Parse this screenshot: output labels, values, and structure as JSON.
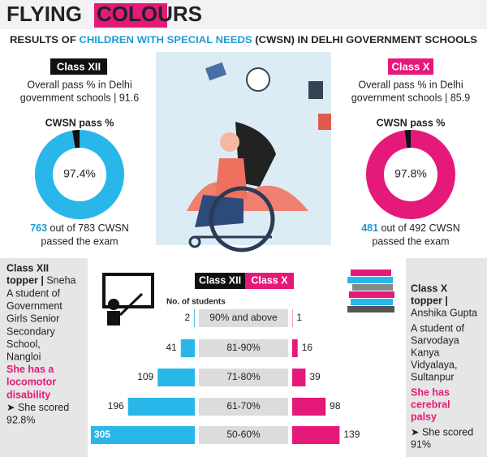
{
  "header": {
    "title_1": "FLYING",
    "title_2": "COLOURS",
    "subtitle_1": "RESULTS OF ",
    "subtitle_2": "CHILDREN WITH SPECIAL NEEDS",
    "subtitle_3": " (CWSN) IN DELHI GOVERNMENT SCHOOLS"
  },
  "class_xii": {
    "label": "Class XII",
    "overall": [
      "Overall pass % in Delhi",
      "government schools | 91.6"
    ],
    "cwsn_heading": "CWSN pass %",
    "passed_count": "763",
    "passed_rest": " out of 783 CWSN",
    "passed_line2": "passed the exam"
  },
  "class_x": {
    "label": "Class X",
    "overall": [
      "Overall pass % in Delhi",
      "government schools | 85.9"
    ],
    "cwsn_heading": "CWSN pass %",
    "passed_count": "481",
    "passed_rest": " out of 492 CWSN",
    "passed_line2": "passed the exam"
  },
  "topper_xii": {
    "heading": [
      "Class XII",
      "topper |"
    ],
    "name": " Sneha",
    "school": [
      "A student of",
      "Government",
      "Girls Senior",
      "Secondary",
      "School,",
      "Nangloi"
    ],
    "condition": [
      "She has a",
      "locomotor",
      "disability"
    ],
    "score": [
      "➤ She scored",
      "92.8%"
    ]
  },
  "topper_x": {
    "heading": [
      "Class X",
      "topper |"
    ],
    "name": "Anshika Gupta",
    "school": [
      "A student of",
      "Sarvodaya",
      "Kanya",
      "Vidyalaya,",
      "Sultanpur"
    ],
    "condition": [
      "She has",
      "cerebral",
      "palsy"
    ],
    "score": [
      "➤ She scored",
      "91%"
    ]
  },
  "chart_data": [
    {
      "type": "donut",
      "center_label": "97.4%",
      "values": [
        97.4,
        2.6
      ],
      "colors": [
        "#29b6e8",
        "#111111"
      ]
    },
    {
      "type": "donut",
      "center_label": "97.8%",
      "values": [
        97.8,
        2.2
      ],
      "colors": [
        "#e5197a",
        "#111111"
      ]
    },
    {
      "type": "butterfly",
      "axis_label": "No. of students",
      "categories": [
        "90% and above",
        "81-90%",
        "71-80%",
        "61-70%",
        "50-60%"
      ],
      "series": [
        {
          "name": "Class XII",
          "color": "#29b6e8",
          "values": [
            2,
            41,
            109,
            196,
            305
          ]
        },
        {
          "name": "Class X",
          "color": "#e5197a",
          "values": [
            1,
            16,
            39,
            98,
            139
          ]
        }
      ]
    }
  ]
}
